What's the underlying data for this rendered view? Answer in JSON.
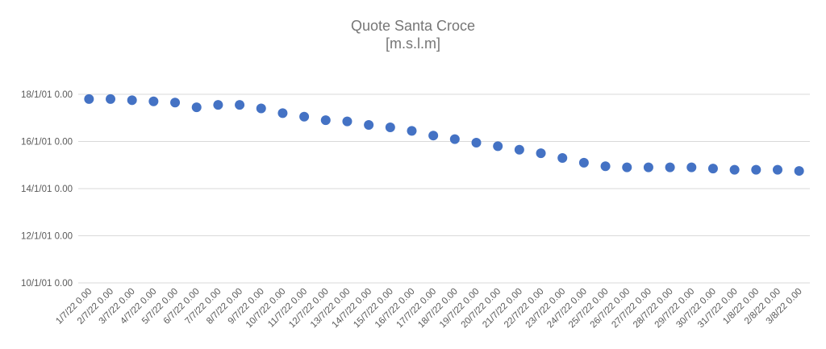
{
  "chart_data": {
    "type": "scatter",
    "title": "Quote Santa Croce",
    "subtitle": "[m.s.l.m]",
    "xlabel": "",
    "ylabel": "",
    "grid": true,
    "legend": "none",
    "color": "#4472c4",
    "x_tick_labels": [
      "1/7/22 0.00",
      "2/7/22 0.00",
      "3/7/22 0.00",
      "4/7/22 0.00",
      "5/7/22 0.00",
      "6/7/22 0.00",
      "7/7/22 0.00",
      "8/7/22 0.00",
      "9/7/22 0.00",
      "10/7/22 0.00",
      "11/7/22 0.00",
      "12/7/22 0.00",
      "13/7/22 0.00",
      "14/7/22 0.00",
      "15/7/22 0.00",
      "16/7/22 0.00",
      "17/7/22 0.00",
      "18/7/22 0.00",
      "19/7/22 0.00",
      "20/7/22 0.00",
      "21/7/22 0.00",
      "22/7/22 0.00",
      "23/7/22 0.00",
      "24/7/22 0.00",
      "25/7/22 0.00",
      "26/7/22 0.00",
      "27/7/22 0.00",
      "28/7/22 0.00",
      "29/7/22 0.00",
      "30/7/22 0.00",
      "31/7/22 0.00",
      "1/8/22 0.00",
      "2/8/22 0.00",
      "3/8/22 0.00"
    ],
    "y_tick_labels": [
      "10/1/01 0.00",
      "12/1/01 0.00",
      "14/1/01 0.00",
      "16/1/01 0.00",
      "18/1/01 0.00"
    ],
    "y_tick_values": [
      0,
      2,
      4,
      6,
      8
    ],
    "ylim": [
      0,
      8
    ],
    "values": [
      7.8,
      7.8,
      7.75,
      7.7,
      7.65,
      7.45,
      7.55,
      7.55,
      7.4,
      7.2,
      7.05,
      6.9,
      6.85,
      6.7,
      6.6,
      6.45,
      6.25,
      6.1,
      5.95,
      5.8,
      5.65,
      5.5,
      5.3,
      5.1,
      4.95,
      4.9,
      4.9,
      4.9,
      4.9,
      4.85,
      4.8,
      4.8,
      4.8,
      4.75
    ]
  }
}
